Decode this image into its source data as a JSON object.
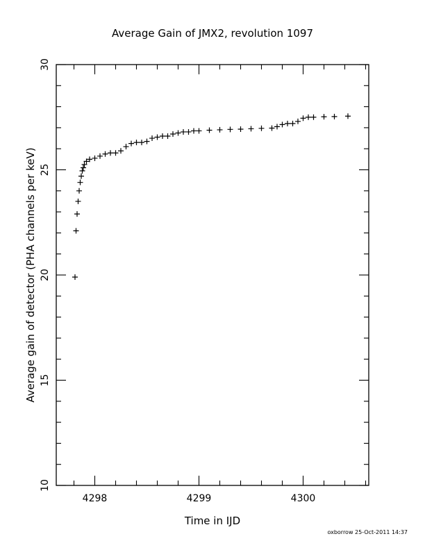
{
  "chart_data": {
    "type": "scatter",
    "title": "Average Gain of JMX2, revolution 1097",
    "xlabel": "Time in IJD",
    "ylabel": "Average gain of detector (PHA channels per keV)",
    "xlim": [
      4297.63,
      4300.63
    ],
    "ylim": [
      10,
      30
    ],
    "x_ticks": [
      4298,
      4299,
      4300
    ],
    "x_tick_labels": [
      "4298",
      "4299",
      "4300"
    ],
    "y_ticks": [
      10,
      15,
      20,
      25,
      30
    ],
    "y_tick_labels": [
      "10",
      "15",
      "20",
      "25",
      "30"
    ],
    "grid": false,
    "legend": "none",
    "marker": "plus",
    "color": "#000000",
    "series": [
      {
        "x": [
          4297.81,
          4297.82,
          4297.83,
          4297.84,
          4297.85,
          4297.86,
          4297.87,
          4297.88,
          4297.89,
          4297.9,
          4297.92,
          4297.95,
          4298.0,
          4298.05,
          4298.1,
          4298.15,
          4298.2,
          4298.25,
          4298.3,
          4298.35,
          4298.4,
          4298.45,
          4298.5,
          4298.55,
          4298.6,
          4298.65,
          4298.7,
          4298.75,
          4298.8,
          4298.85,
          4298.9,
          4298.95,
          4299.0,
          4299.1,
          4299.2,
          4299.3,
          4299.4,
          4299.5,
          4299.6,
          4299.7,
          4299.75,
          4299.8,
          4299.85,
          4299.9,
          4299.95,
          4300.0,
          4300.05,
          4300.1,
          4300.2,
          4300.3,
          4300.43
        ],
        "y": [
          19.9,
          22.1,
          22.9,
          23.5,
          24.0,
          24.4,
          24.7,
          24.95,
          25.1,
          25.25,
          25.4,
          25.5,
          25.55,
          25.65,
          25.75,
          25.8,
          25.8,
          25.9,
          26.1,
          26.25,
          26.3,
          26.3,
          26.35,
          26.5,
          26.55,
          26.6,
          26.6,
          26.7,
          26.75,
          26.8,
          26.8,
          26.85,
          26.85,
          26.88,
          26.9,
          26.92,
          26.93,
          26.95,
          26.97,
          26.98,
          27.05,
          27.15,
          27.2,
          27.2,
          27.3,
          27.45,
          27.5,
          27.5,
          27.52,
          27.53,
          27.55
        ]
      }
    ]
  },
  "footer": "oxborrow 25-Oct-2011 14:37"
}
